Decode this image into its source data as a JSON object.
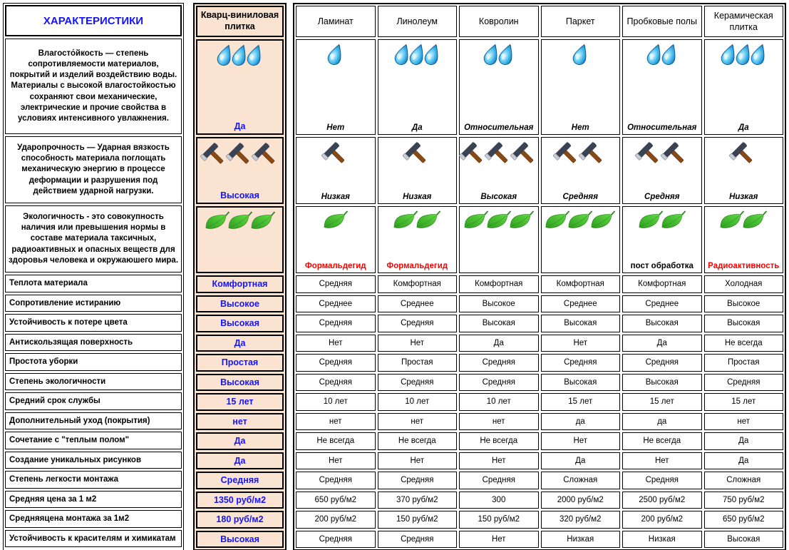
{
  "colors": {
    "accent_blue": "#1414ff",
    "alert_red": "#ff0000",
    "highlight_bg": "#fbe3d1",
    "border": "#000000"
  },
  "chart_data": {
    "type": "table",
    "title": "ХАРАКТЕРИСТИКИ",
    "highlight_column": "Кварц-виниловая плитка",
    "materials": [
      "Ламинат",
      "Линолеум",
      "Ковролин",
      "Паркет",
      "Пробковые полы",
      "Керамическая плитка"
    ],
    "icon_rows": [
      {
        "icon": "drop-icon",
        "description": "Влагосто́йкость — степень сопротивляемости материалов, покрытий и изделий воздействию воды. Материалы с высокой влагостойкостью сохраняют свои механические, электрические и прочие свойства в условиях интенсивного увлажнения.",
        "quartz": {
          "n": 3,
          "label": "Да"
        },
        "cells": [
          {
            "n": 1,
            "label": "Нет",
            "style": "italic"
          },
          {
            "n": 3,
            "label": "Да",
            "style": "italic"
          },
          {
            "n": 2,
            "label": "Относительная",
            "style": "italic"
          },
          {
            "n": 1,
            "label": "Нет",
            "style": "italic"
          },
          {
            "n": 2,
            "label": "Относительная",
            "style": "italic"
          },
          {
            "n": 3,
            "label": "Да",
            "style": "italic"
          }
        ]
      },
      {
        "icon": "hammer-icon",
        "description": "Ударопрочность — Ударная вязкость способность материала поглощать механическую энергию в процессе деформации и разрушения под действием ударной нагрузки.",
        "quartz": {
          "n": 3,
          "label": "Высокая"
        },
        "cells": [
          {
            "n": 1,
            "label": "Низкая",
            "style": "italic"
          },
          {
            "n": 1,
            "label": "Низкая",
            "style": "italic"
          },
          {
            "n": 3,
            "label": "Высокая",
            "style": "italic"
          },
          {
            "n": 2,
            "label": "Средняя",
            "style": "italic"
          },
          {
            "n": 2,
            "label": "Средняя",
            "style": "italic"
          },
          {
            "n": 1,
            "label": "Низкая",
            "style": "italic"
          }
        ]
      },
      {
        "icon": "leaf-icon",
        "description": "Экологичность - это совокупность наличия или превышения нормы в составе материала таксичных, радиоактивных и опасных веществ для здоровья человека и окружаюшего мира.",
        "quartz": {
          "n": 3,
          "label": ""
        },
        "cells": [
          {
            "n": 1,
            "label": "Формальдегид",
            "style": "red"
          },
          {
            "n": 2,
            "label": "Формальдегид",
            "style": "red"
          },
          {
            "n": 3,
            "label": "",
            "style": "plain"
          },
          {
            "n": 3,
            "label": "",
            "style": "plain"
          },
          {
            "n": 2,
            "label": "пост обработка",
            "style": "plain"
          },
          {
            "n": 2,
            "label": "Радиоактивность",
            "style": "red"
          }
        ]
      }
    ],
    "simple_rows": [
      {
        "label": "Теплота материала",
        "quartz": "Комфортная",
        "cells": [
          "Средняя",
          "Комфортная",
          "Комфортная",
          "Комфортная",
          "Комфортная",
          "Холодная"
        ]
      },
      {
        "label": "Сопротивление истиранию",
        "quartz": "Высокое",
        "cells": [
          "Среднее",
          "Среднее",
          "Высокое",
          "Среднее",
          "Среднее",
          "Высокое"
        ]
      },
      {
        "label": "Устойчивость к потере цвета",
        "quartz": "Высокая",
        "cells": [
          "Средняя",
          "Средняя",
          "Высокая",
          "Высокая",
          "Высокая",
          "Высокая"
        ]
      },
      {
        "label": "Антискользящая поверхность",
        "quartz": "Да",
        "cells": [
          "Нет",
          "Нет",
          "Да",
          "Нет",
          "Да",
          "Не всегда"
        ]
      },
      {
        "label": "Простота уборки",
        "quartz": "Простая",
        "cells": [
          "Средняя",
          "Простая",
          "Средняя",
          "Средняя",
          "Средняя",
          "Простая"
        ]
      },
      {
        "label": "Степень экологичности",
        "quartz": "Высокая",
        "cells": [
          "Средняя",
          "Средняя",
          "Средняя",
          "Высокая",
          "Высокая",
          "Средняя"
        ]
      },
      {
        "label": "Средний срок службы",
        "quartz": "15 лет",
        "cells": [
          "10 лет",
          "10 лет",
          "10 лет",
          "15 лет",
          "15 лет",
          "15 лет"
        ]
      },
      {
        "label": "Дополнительный уход (покрытия)",
        "quartz": "нет",
        "cells": [
          "нет",
          "нет",
          "нет",
          "да",
          "да",
          "нет"
        ]
      },
      {
        "label": "Сочетание с \"теплым полом\"",
        "quartz": "Да",
        "cells": [
          "Не всегда",
          "Не всегда",
          "Не всегда",
          "Нет",
          "Не всегда",
          "Да"
        ]
      },
      {
        "label": "Создание уникальных рисунков",
        "quartz": "Да",
        "cells": [
          "Нет",
          "Нет",
          "Нет",
          "Да",
          "Нет",
          "Да"
        ]
      },
      {
        "label": "Степень легкости монтажа",
        "quartz": "Средняя",
        "cells": [
          "Средняя",
          "Средняя",
          "Средняя",
          "Сложная",
          "Средняя",
          "Сложная"
        ]
      },
      {
        "label": "Средняя цена за 1 м2",
        "quartz": "1350 руб/м2",
        "cells": [
          "650 руб/м2",
          "370 руб/м2",
          "300",
          "2000 руб/м2",
          "2500 руб/м2",
          "750 руб/м2"
        ]
      },
      {
        "label": "Средняяцена монтажа за 1м2",
        "quartz": "180 руб/м2",
        "cells": [
          "200 руб/м2",
          "150 руб/м2",
          "150 руб/м2",
          "320 руб/м2",
          "200 руб/м2",
          "650 руб/м2"
        ]
      },
      {
        "label": "Устойчивость к красителям и химикатам",
        "quartz": "Высокая",
        "cells": [
          "Средняя",
          "Средняя",
          "Нет",
          "Низкая",
          "Низкая",
          "Высокая"
        ]
      }
    ]
  }
}
